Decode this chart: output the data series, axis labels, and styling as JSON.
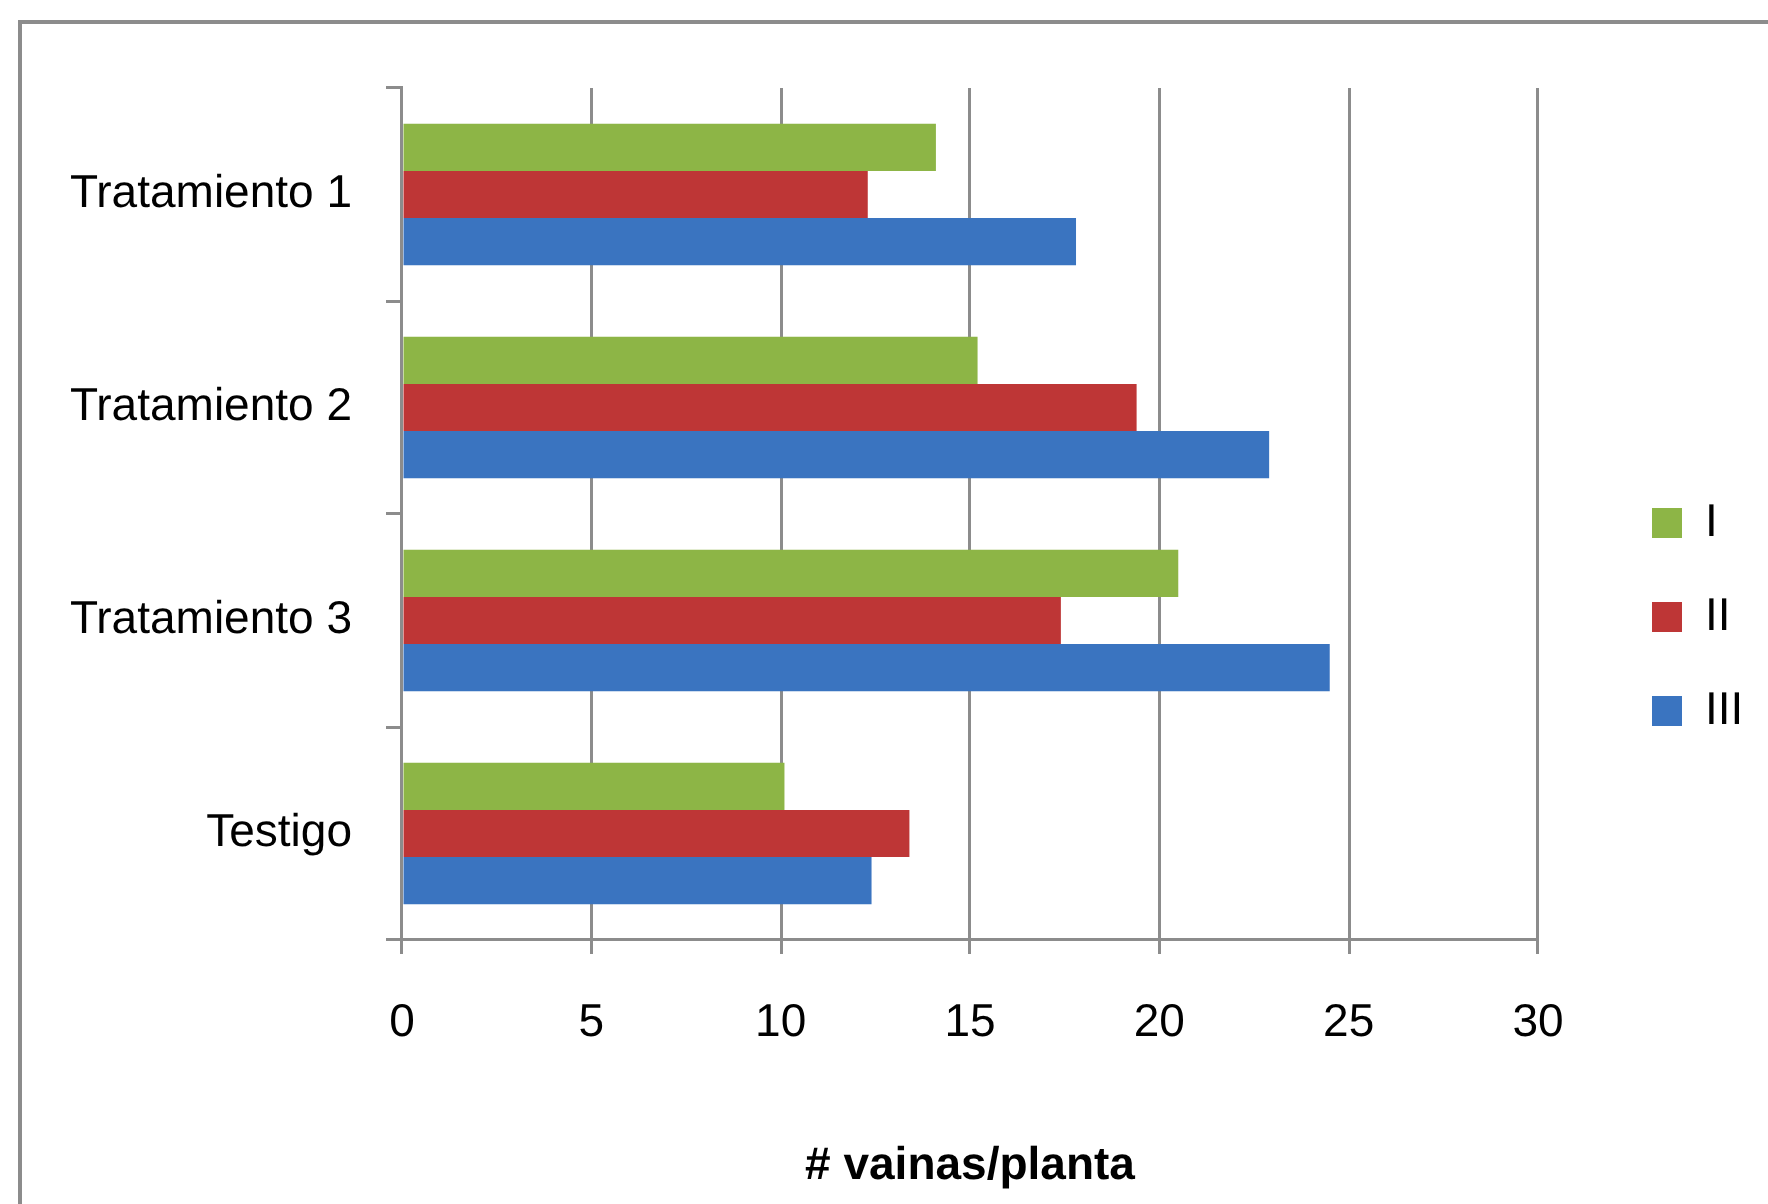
{
  "chart_data": {
    "type": "bar",
    "orientation": "horizontal",
    "categories": [
      "Tratamiento 1",
      "Tratamiento 2",
      "Tratamiento 3",
      "Testigo"
    ],
    "series": [
      {
        "name": "I",
        "color": "#8db546",
        "values": [
          14.1,
          15.2,
          20.5,
          10.1
        ]
      },
      {
        "name": "II",
        "color": "#be3636",
        "values": [
          12.3,
          19.4,
          17.4,
          13.4
        ]
      },
      {
        "name": "III",
        "color": "#3a74c0",
        "values": [
          17.8,
          22.9,
          24.5,
          12.4
        ]
      }
    ],
    "xlabel": "# vainas/planta",
    "xlim": [
      0,
      30
    ],
    "xticks": [
      0,
      5,
      10,
      15,
      20,
      25,
      30
    ],
    "grid": "x",
    "legend": "right"
  }
}
